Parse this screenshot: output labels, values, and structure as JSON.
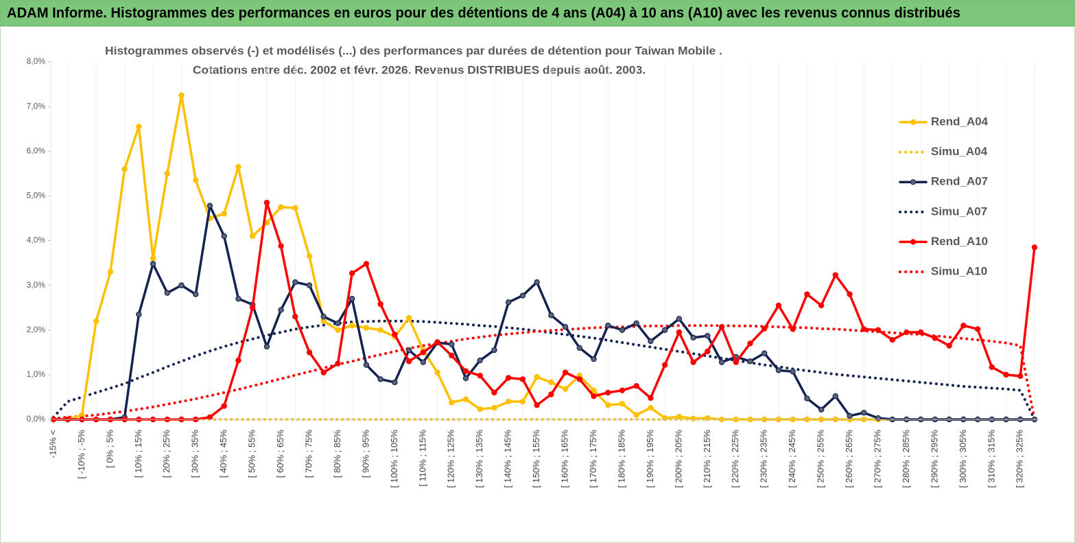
{
  "chart_data": {
    "type": "line",
    "banner": "ADAM Informe. Histogrammes des performances en euros pour des détentions de 4 ans (A04) à 10 ans (A10) avec les revenus connus distribués",
    "title": "Histogrammes observés (-) et modélisés (...) des performances par durées de détention pour Taiwan Mobile .",
    "subtitle": "Cotations entre déc. 2002 et févr. 2026. Revenus DISTRIBUES depuis août. 2003.",
    "categories": [
      "-15% <",
      null,
      "[ -10% ; -5%",
      null,
      "[ 0% ; 5%",
      null,
      "[ 10% ; 15%",
      null,
      "[ 20% ; 25%",
      null,
      "[ 30% ; 35%",
      null,
      "[ 40% ; 45%",
      null,
      "[ 50% ; 55%",
      null,
      "[ 60% ; 65%",
      null,
      "[ 70% ; 75%",
      null,
      "[ 80% ; 85%",
      null,
      "[ 90% ; 95%",
      null,
      "[ 100% ; 105%",
      null,
      "[ 110% ; 115%",
      null,
      "[ 120% ; 125%",
      null,
      "[ 130% ; 135%",
      null,
      "[ 140% ; 145%",
      null,
      "[ 150% ; 155%",
      null,
      "[ 160% ; 165%",
      null,
      "[ 170% ; 175%",
      null,
      "[ 180% ; 185%",
      null,
      "[ 190% ; 195%",
      null,
      "[ 200% ; 205%",
      null,
      "[ 210% ; 215%",
      null,
      "[ 220% ; 225%",
      null,
      "[ 230% ; 235%",
      null,
      "[ 240% ; 245%",
      null,
      "[ 250% ; 255%",
      null,
      "[ 260% ; 265%",
      null,
      "[ 270% ; 275%",
      null,
      "[ 280% ; 285%",
      null,
      "[ 290% ; 295%",
      null,
      "[ 300% ; 305%",
      null,
      "[ 310% ; 315%",
      null,
      "[ 320% ; 325%",
      null
    ],
    "series": [
      {
        "name": "Rend_A04",
        "color": "#FFC000",
        "style": "solid",
        "markers": true,
        "values": [
          0,
          0,
          0.1,
          2.2,
          3.3,
          5.6,
          6.55,
          3.6,
          5.5,
          7.25,
          5.35,
          4.5,
          4.6,
          5.65,
          4.1,
          4.4,
          4.75,
          4.73,
          3.65,
          2.2,
          2.0,
          2.1,
          2.05,
          2.0,
          1.85,
          2.27,
          1.55,
          1.05,
          0.38,
          0.45,
          0.23,
          0.26,
          0.4,
          0.4,
          0.95,
          0.83,
          0.68,
          0.98,
          0.65,
          0.32,
          0.35,
          0.1,
          0.26,
          0.03,
          0.06,
          0.02,
          0.03,
          0,
          0,
          0,
          0,
          0,
          0,
          0,
          0,
          0,
          0,
          0,
          0,
          0,
          0,
          0,
          0,
          0,
          0,
          0,
          0,
          0,
          0,
          0
        ]
      },
      {
        "name": "Simu_A04",
        "color": "#FFC000",
        "style": "dotted",
        "markers": false,
        "values": [
          0,
          0,
          0,
          0,
          0,
          0,
          0,
          0,
          0,
          0,
          0,
          0,
          0,
          0,
          0,
          0,
          0,
          0,
          0,
          0,
          0,
          0,
          0,
          0,
          0,
          0,
          0,
          0,
          0,
          0,
          0,
          0,
          0,
          0,
          0,
          0,
          0,
          0,
          0,
          0,
          0,
          0,
          0,
          0,
          0,
          0,
          0,
          0,
          0,
          0,
          0,
          0,
          0,
          0,
          0,
          0,
          0,
          0,
          0,
          0,
          0,
          0,
          0,
          0,
          0,
          0,
          0,
          0,
          0,
          0
        ]
      },
      {
        "name": "Rend_A07",
        "color": "#14224f",
        "style": "solid",
        "markers": true,
        "marker_fill": "#5b6577",
        "values": [
          0,
          0,
          0,
          0,
          0,
          0.05,
          2.35,
          3.48,
          2.83,
          3.0,
          2.8,
          4.78,
          4.1,
          2.7,
          2.57,
          1.63,
          2.45,
          3.07,
          3.0,
          2.3,
          2.15,
          2.7,
          1.22,
          0.9,
          0.83,
          1.55,
          1.28,
          1.72,
          1.68,
          0.92,
          1.32,
          1.55,
          2.62,
          2.77,
          3.07,
          2.33,
          2.07,
          1.6,
          1.35,
          2.1,
          2.0,
          2.15,
          1.75,
          2.0,
          2.25,
          1.83,
          1.87,
          1.28,
          1.4,
          1.3,
          1.48,
          1.1,
          1.07,
          0.47,
          0.22,
          0.52,
          0.08,
          0.15,
          0.03,
          0,
          0,
          0,
          0,
          0,
          0,
          0,
          0,
          0,
          0,
          0
        ]
      },
      {
        "name": "Simu_A07",
        "color": "#14224f",
        "style": "dotted",
        "markers": false,
        "values": [
          0.05,
          0.4,
          0.5,
          0.6,
          0.7,
          0.8,
          0.93,
          1.05,
          1.18,
          1.3,
          1.42,
          1.53,
          1.63,
          1.72,
          1.8,
          1.88,
          1.95,
          2.02,
          2.07,
          2.11,
          2.15,
          2.18,
          2.19,
          2.2,
          2.2,
          2.2,
          2.19,
          2.17,
          2.15,
          2.13,
          2.1,
          2.08,
          2.05,
          2.02,
          1.98,
          1.94,
          1.9,
          1.86,
          1.82,
          1.77,
          1.72,
          1.67,
          1.62,
          1.57,
          1.52,
          1.47,
          1.42,
          1.37,
          1.32,
          1.27,
          1.22,
          1.18,
          1.13,
          1.09,
          1.05,
          1.01,
          0.98,
          0.95,
          0.92,
          0.89,
          0.86,
          0.83,
          0.8,
          0.77,
          0.74,
          0.72,
          0.7,
          0.68,
          0.65,
          0
        ]
      },
      {
        "name": "Rend_A10",
        "color": "#FF0000",
        "style": "solid",
        "markers": true,
        "values": [
          0,
          0,
          0,
          0,
          0,
          0,
          0,
          0,
          0,
          0,
          0,
          0.05,
          0.3,
          1.32,
          2.5,
          4.85,
          3.88,
          2.3,
          1.5,
          1.05,
          1.25,
          3.27,
          3.48,
          2.58,
          1.9,
          1.3,
          1.5,
          1.73,
          1.43,
          1.08,
          0.98,
          0.6,
          0.93,
          0.9,
          0.32,
          0.56,
          1.05,
          0.9,
          0.52,
          0.6,
          0.65,
          0.75,
          0.48,
          1.22,
          1.95,
          1.28,
          1.52,
          2.07,
          1.28,
          1.7,
          2.03,
          2.55,
          2.02,
          2.8,
          2.55,
          3.23,
          2.8,
          2.02,
          2.0,
          1.78,
          1.95,
          1.95,
          1.82,
          1.65,
          2.1,
          2.02,
          1.17,
          1.0,
          0.97,
          3.85
        ]
      },
      {
        "name": "Simu_A10",
        "color": "#FF0000",
        "style": "dotted",
        "markers": false,
        "values": [
          0.02,
          0.05,
          0.07,
          0.1,
          0.14,
          0.18,
          0.23,
          0.28,
          0.34,
          0.4,
          0.46,
          0.53,
          0.6,
          0.67,
          0.75,
          0.83,
          0.91,
          0.99,
          1.07,
          1.15,
          1.23,
          1.3,
          1.38,
          1.45,
          1.52,
          1.59,
          1.65,
          1.7,
          1.75,
          1.8,
          1.84,
          1.88,
          1.91,
          1.94,
          1.97,
          1.99,
          2.01,
          2.03,
          2.05,
          2.06,
          2.07,
          2.08,
          2.09,
          2.09,
          2.1,
          2.1,
          2.1,
          2.1,
          2.09,
          2.09,
          2.08,
          2.07,
          2.06,
          2.05,
          2.03,
          2.02,
          2.0,
          1.98,
          1.96,
          1.94,
          1.92,
          1.9,
          1.87,
          1.84,
          1.81,
          1.78,
          1.75,
          1.71,
          1.65,
          0
        ]
      }
    ],
    "ylim": [
      0,
      8
    ],
    "yticks": [
      {
        "value": 0,
        "label": "0,0%"
      },
      {
        "value": 1,
        "label": "1,0%"
      },
      {
        "value": 2,
        "label": "2,0%"
      },
      {
        "value": 3,
        "label": "3,0%"
      },
      {
        "value": 4,
        "label": "4,0%"
      },
      {
        "value": 5,
        "label": "5,0%"
      },
      {
        "value": 6,
        "label": "6,0%"
      },
      {
        "value": 7,
        "label": "7,0%"
      },
      {
        "value": 8,
        "label": "8,0%"
      }
    ],
    "grid": false,
    "legend": "right"
  }
}
